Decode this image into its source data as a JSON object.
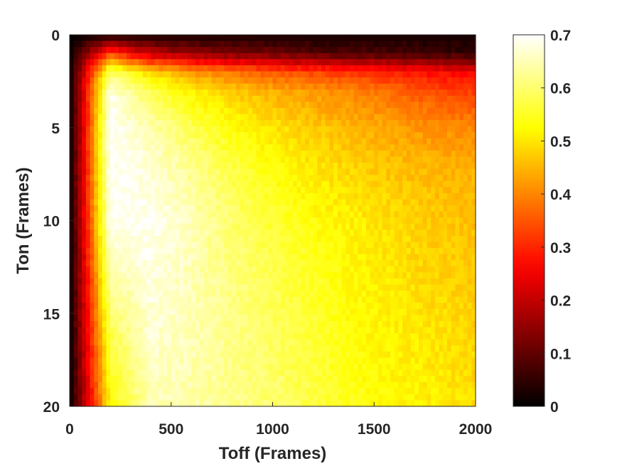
{
  "chart_data": {
    "type": "heatmap",
    "title": "",
    "xlabel": "Toff (Frames)",
    "ylabel": "Ton (Frames)",
    "xlim": [
      0,
      2000
    ],
    "ylim": [
      0,
      20
    ],
    "y_reversed": true,
    "x_ticks": [
      0,
      500,
      1000,
      1500,
      2000
    ],
    "x_tick_labels": [
      "0",
      "500",
      "1000",
      "1500",
      "2000"
    ],
    "y_ticks": [
      0,
      5,
      10,
      15,
      20
    ],
    "y_tick_labels": [
      "0",
      "5",
      "10",
      "15",
      "20"
    ],
    "colormap": "hot",
    "colorbar": {
      "limits": [
        0,
        0.7
      ],
      "ticks": [
        0,
        0.1,
        0.2,
        0.3,
        0.4,
        0.5,
        0.6,
        0.7
      ],
      "tick_labels": [
        "0",
        "0.1",
        "0.2",
        "0.3",
        "0.4",
        "0.5",
        "0.6",
        "0.7"
      ],
      "placement": "right"
    },
    "x_bin_centers": [
      0,
      200,
      400,
      600,
      800,
      1000,
      1200,
      1400,
      1600,
      1800,
      2000
    ],
    "y_bin_centers": [
      0,
      1,
      2,
      3,
      5,
      7,
      10,
      13,
      16,
      20
    ],
    "values": [
      [
        0.0,
        0.02,
        0.02,
        0.02,
        0.02,
        0.02,
        0.02,
        0.02,
        0.02,
        0.02,
        0.02
      ],
      [
        0.0,
        0.33,
        0.2,
        0.15,
        0.13,
        0.11,
        0.09,
        0.08,
        0.07,
        0.06,
        0.05
      ],
      [
        0.0,
        0.6,
        0.48,
        0.42,
        0.38,
        0.35,
        0.33,
        0.31,
        0.29,
        0.27,
        0.25
      ],
      [
        0.0,
        0.68,
        0.58,
        0.51,
        0.47,
        0.44,
        0.42,
        0.4,
        0.37,
        0.34,
        0.32
      ],
      [
        0.0,
        0.7,
        0.64,
        0.58,
        0.53,
        0.5,
        0.47,
        0.45,
        0.43,
        0.41,
        0.4
      ],
      [
        0.0,
        0.7,
        0.67,
        0.62,
        0.57,
        0.53,
        0.5,
        0.48,
        0.46,
        0.45,
        0.44
      ],
      [
        0.0,
        0.69,
        0.69,
        0.65,
        0.6,
        0.56,
        0.53,
        0.51,
        0.49,
        0.47,
        0.46
      ],
      [
        0.0,
        0.64,
        0.68,
        0.65,
        0.61,
        0.58,
        0.55,
        0.52,
        0.5,
        0.48,
        0.47
      ],
      [
        0.0,
        0.58,
        0.67,
        0.65,
        0.62,
        0.59,
        0.56,
        0.53,
        0.51,
        0.5,
        0.48
      ],
      [
        0.0,
        0.52,
        0.65,
        0.64,
        0.62,
        0.6,
        0.57,
        0.54,
        0.52,
        0.51,
        0.49
      ]
    ]
  }
}
